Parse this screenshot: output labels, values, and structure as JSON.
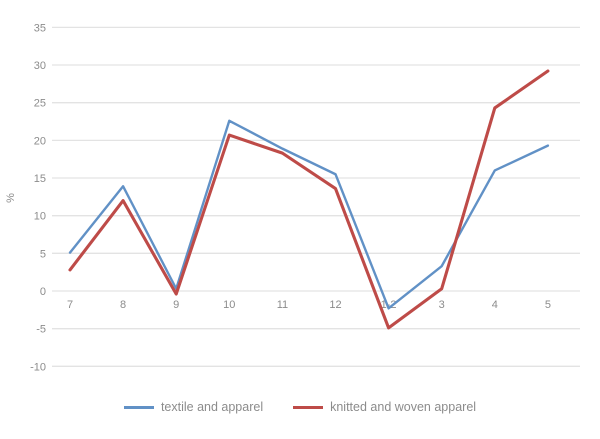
{
  "chart_data": {
    "type": "line",
    "title": "",
    "xlabel": "",
    "ylabel": "%",
    "categories": [
      "7",
      "8",
      "9",
      "10",
      "11",
      "12",
      "1-2",
      "3",
      "4",
      "5"
    ],
    "series": [
      {
        "name": "textile and apparel",
        "color": "#6191c6",
        "width": 2.4,
        "values": [
          5.1,
          13.9,
          0.3,
          22.6,
          18.9,
          15.5,
          -2.3,
          3.3,
          16.0,
          19.3
        ]
      },
      {
        "name": "knitted and woven apparel",
        "color": "#be4b48",
        "width": 3.1,
        "values": [
          2.8,
          12.0,
          -0.4,
          20.7,
          18.3,
          13.6,
          -4.9,
          0.3,
          24.3,
          29.2
        ]
      }
    ],
    "ylim": [
      -10,
      35
    ],
    "y_ticks": [
      35,
      30,
      25,
      20,
      15,
      10,
      5,
      0,
      -5,
      -10
    ],
    "grid": true,
    "legend_position": "bottom-center",
    "colors": {
      "gridline": "#e3e3e3",
      "tick_text": "#8c8c8c",
      "background": "#ffffff"
    }
  }
}
